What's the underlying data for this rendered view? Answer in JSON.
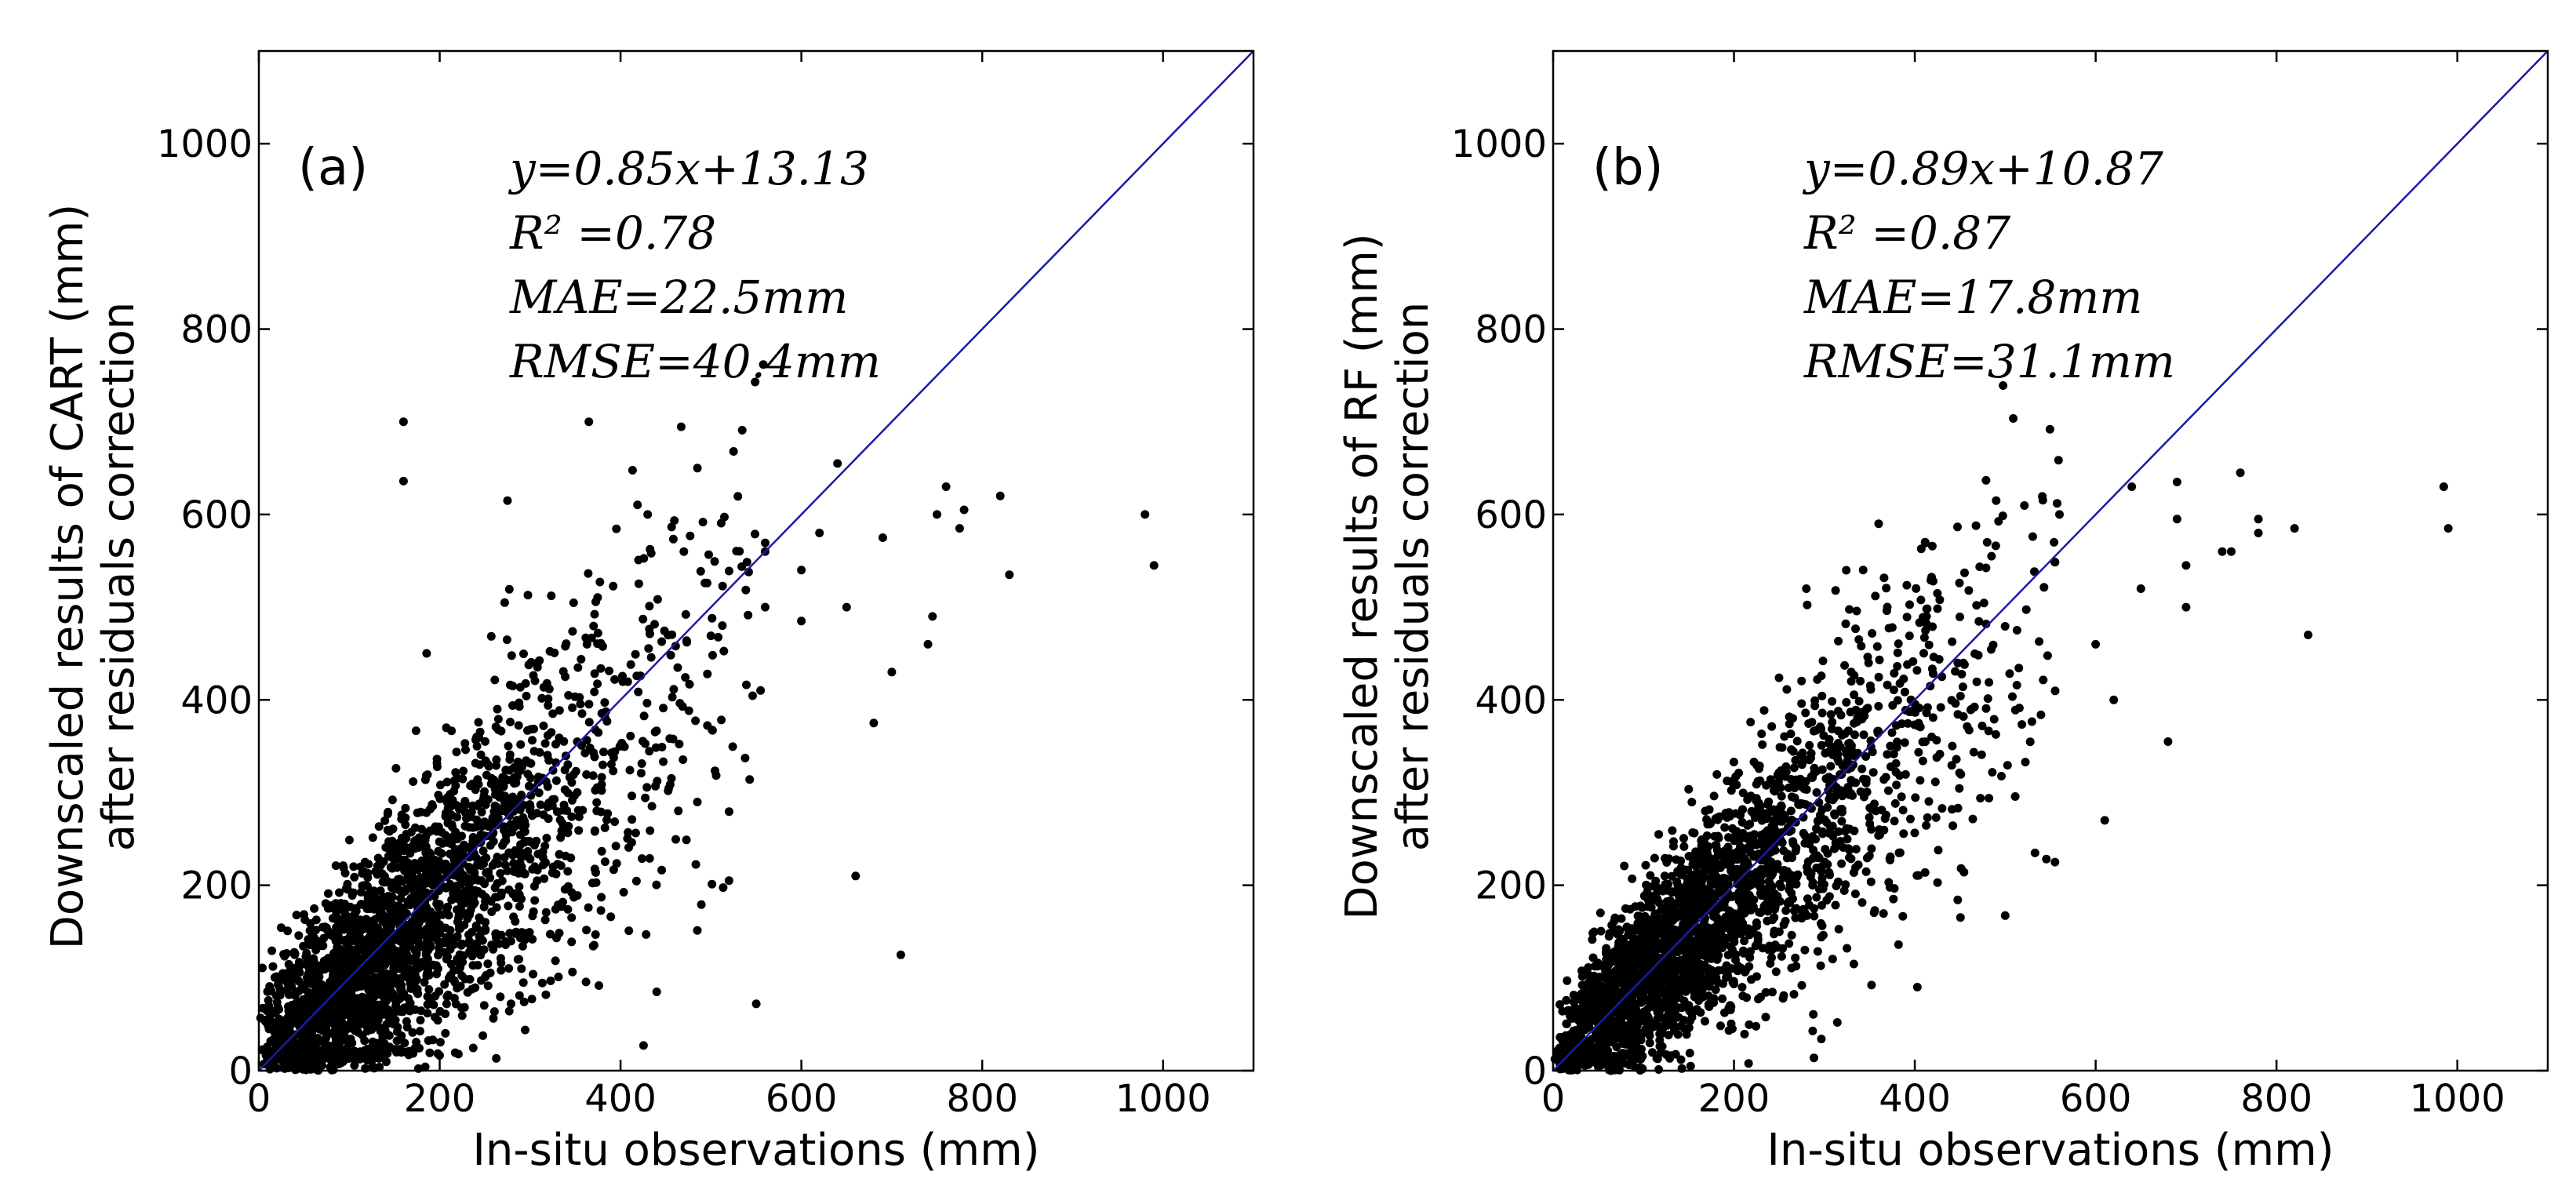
{
  "chart_data": [
    {
      "type": "scatter",
      "panel_label": "(a)",
      "xlabel": "In-situ observations (mm)",
      "ylabel_lines": [
        "Downscaled results of CART (mm)",
        "after residuals correction"
      ],
      "xlim": [
        0,
        1100
      ],
      "ylim": [
        0,
        1100
      ],
      "xticks": [
        0,
        200,
        400,
        600,
        800,
        1000
      ],
      "yticks": [
        0,
        200,
        400,
        600,
        800,
        1000
      ],
      "tick_labels": [
        "0",
        "200",
        "400",
        "600",
        "800",
        "1000"
      ],
      "annotations": [
        "y=0.85x+13.13",
        "R² =0.78",
        "MAE=22.5mm",
        "RMSE=40.4mm"
      ],
      "reference_line": {
        "type": "1:1",
        "from": [
          0,
          0
        ],
        "to": [
          1100,
          1100
        ],
        "color": "#1a1aa8"
      },
      "point_color": "#000000",
      "cloud": {
        "count": 2600,
        "x_scale": 95,
        "slope": 0.85,
        "intercept": 13.13,
        "noise_sd": 38,
        "seed": 11
      },
      "outliers": [
        [
          160,
          700
        ],
        [
          160,
          636
        ],
        [
          275,
          615
        ],
        [
          365,
          700
        ],
        [
          485,
          650
        ],
        [
          525,
          668
        ],
        [
          560,
          560
        ],
        [
          560,
          500
        ],
        [
          600,
          540
        ],
        [
          620,
          580
        ],
        [
          640,
          655
        ],
        [
          650,
          500
        ],
        [
          660,
          210
        ],
        [
          680,
          375
        ],
        [
          690,
          575
        ],
        [
          700,
          430
        ],
        [
          710,
          125
        ],
        [
          740,
          460
        ],
        [
          745,
          490
        ],
        [
          750,
          600
        ],
        [
          760,
          630
        ],
        [
          775,
          585
        ],
        [
          780,
          605
        ],
        [
          820,
          620
        ],
        [
          830,
          535
        ],
        [
          980,
          600
        ],
        [
          990,
          545
        ],
        [
          440,
          85
        ],
        [
          520,
          205
        ],
        [
          600,
          485
        ],
        [
          470,
          560
        ],
        [
          430,
          600
        ]
      ]
    },
    {
      "type": "scatter",
      "panel_label": "(b)",
      "xlabel": "In-situ observations (mm)",
      "ylabel_lines": [
        "Downscaled results of RF (mm)",
        "after residuals correction"
      ],
      "xlim": [
        0,
        1100
      ],
      "ylim": [
        0,
        1100
      ],
      "xticks": [
        0,
        200,
        400,
        600,
        800,
        1000
      ],
      "yticks": [
        0,
        200,
        400,
        600,
        800,
        1000
      ],
      "tick_labels": [
        "0",
        "200",
        "400",
        "600",
        "800",
        "1000"
      ],
      "annotations": [
        "y=0.89x+10.87",
        "R² =0.87",
        "MAE=17.8mm",
        "RMSE=31.1mm"
      ],
      "reference_line": {
        "type": "1:1",
        "from": [
          0,
          0
        ],
        "to": [
          1100,
          1100
        ],
        "color": "#1a1aa8"
      },
      "point_color": "#000000",
      "cloud": {
        "count": 2600,
        "x_scale": 95,
        "slope": 0.89,
        "intercept": 10.87,
        "noise_sd": 28,
        "seed": 23
      },
      "outliers": [
        [
          490,
          615
        ],
        [
          560,
          600
        ],
        [
          640,
          630
        ],
        [
          690,
          635
        ],
        [
          690,
          595
        ],
        [
          700,
          545
        ],
        [
          680,
          355
        ],
        [
          740,
          560
        ],
        [
          750,
          560
        ],
        [
          760,
          645
        ],
        [
          780,
          580
        ],
        [
          780,
          595
        ],
        [
          820,
          585
        ],
        [
          835,
          470
        ],
        [
          985,
          630
        ],
        [
          990,
          585
        ],
        [
          610,
          270
        ],
        [
          555,
          225
        ],
        [
          480,
          570
        ],
        [
          360,
          590
        ],
        [
          280,
          520
        ],
        [
          600,
          460
        ],
        [
          650,
          520
        ],
        [
          700,
          500
        ],
        [
          620,
          400
        ]
      ]
    }
  ]
}
